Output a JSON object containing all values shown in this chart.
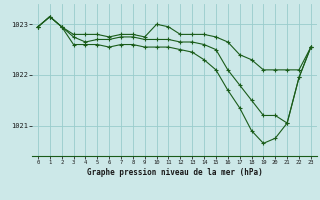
{
  "background_color": "#cce8e8",
  "grid_color": "#99cccc",
  "line_color": "#1a5c1a",
  "title": "Graphe pression niveau de la mer (hPa)",
  "ylim": [
    1020.4,
    1023.4
  ],
  "yticks": [
    1021,
    1022,
    1023
  ],
  "xlim": [
    -0.5,
    23.5
  ],
  "xticks": [
    0,
    1,
    2,
    3,
    4,
    5,
    6,
    7,
    8,
    9,
    10,
    11,
    12,
    13,
    14,
    15,
    16,
    17,
    18,
    19,
    20,
    21,
    22,
    23
  ],
  "series1": [
    1022.95,
    1023.15,
    1022.95,
    1022.8,
    1022.8,
    1022.8,
    1022.75,
    1022.8,
    1022.8,
    1022.75,
    1023.0,
    1022.95,
    1022.8,
    1022.8,
    1022.8,
    1022.75,
    1022.65,
    1022.4,
    1022.3,
    1022.1,
    1022.1,
    1022.1,
    1022.1,
    1022.55
  ],
  "series2": [
    1022.95,
    1023.15,
    1022.95,
    1022.75,
    1022.65,
    1022.7,
    1022.7,
    1022.75,
    1022.75,
    1022.7,
    1022.7,
    1022.7,
    1022.65,
    1022.65,
    1022.6,
    1022.5,
    1022.1,
    1021.8,
    1021.5,
    1021.2,
    1021.2,
    1021.05,
    1021.95,
    1022.55
  ],
  "series3": [
    1022.95,
    1023.15,
    1022.95,
    1022.6,
    1022.6,
    1022.6,
    1022.55,
    1022.6,
    1022.6,
    1022.55,
    1022.55,
    1022.55,
    1022.5,
    1022.45,
    1022.3,
    1022.1,
    1021.7,
    1021.35,
    1020.9,
    1020.65,
    1020.75,
    1021.05,
    1021.95,
    1022.55
  ]
}
